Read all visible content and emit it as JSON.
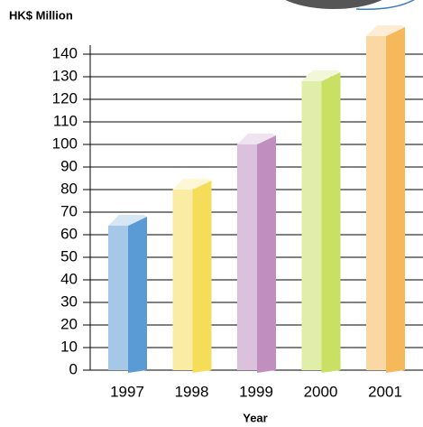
{
  "chart_data": {
    "type": "bar",
    "y_label": "HK$ Million",
    "x_label": "Year",
    "categories": [
      "1997",
      "1998",
      "1999",
      "2000",
      "2001"
    ],
    "values": [
      64,
      80,
      100,
      128,
      148
    ],
    "colors": [
      "#5b9bd5",
      "#f5dd5a",
      "#c08fbf",
      "#c9e064",
      "#f5b85a"
    ],
    "ylim": [
      0,
      150
    ],
    "yticks": [
      0,
      10,
      20,
      30,
      40,
      50,
      60,
      70,
      80,
      90,
      100,
      110,
      120,
      130,
      140
    ],
    "grid": true
  }
}
